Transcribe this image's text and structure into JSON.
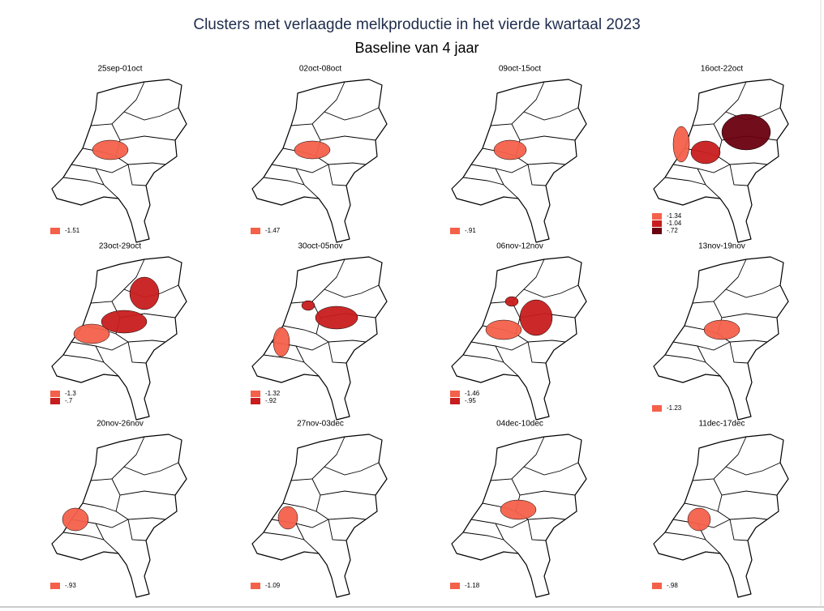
{
  "title": "Clusters met verlaagde melkproductie in het vierde kwartaal 2023",
  "subtitle": "Baseline van 4 jaar",
  "panels": [
    {
      "title": "25sep-01oct",
      "legend": [
        {
          "label": "-1.51",
          "color": "#f4604a"
        }
      ]
    },
    {
      "title": "02oct-08oct",
      "legend": [
        {
          "label": "-1.47",
          "color": "#f4604a"
        }
      ]
    },
    {
      "title": "09oct-15oct",
      "legend": [
        {
          "label": "-.91",
          "color": "#f4604a"
        }
      ]
    },
    {
      "title": "16oct-22oct",
      "legend": [
        {
          "label": "-1.34",
          "color": "#f4604a"
        },
        {
          "label": "-1.04",
          "color": "#c81d1e"
        },
        {
          "label": "-.72",
          "color": "#6a0010"
        }
      ]
    },
    {
      "title": "23oct-29oct",
      "legend": [
        {
          "label": "-1.3",
          "color": "#f4604a"
        },
        {
          "label": "-.7",
          "color": "#c81d1e"
        }
      ]
    },
    {
      "title": "30oct-05nov",
      "legend": [
        {
          "label": "-1.32",
          "color": "#f4604a"
        },
        {
          "label": "-.92",
          "color": "#c81d1e"
        }
      ]
    },
    {
      "title": "06nov-12nov",
      "legend": [
        {
          "label": "-1.46",
          "color": "#f4604a"
        },
        {
          "label": "-.95",
          "color": "#c81d1e"
        }
      ]
    },
    {
      "title": "13nov-19nov",
      "legend": [
        {
          "label": "-1.23",
          "color": "#f4604a"
        }
      ]
    },
    {
      "title": "20nov-26nov",
      "legend": [
        {
          "label": "-.93",
          "color": "#f4604a"
        }
      ]
    },
    {
      "title": "27nov-03dec",
      "legend": [
        {
          "label": "-1.09",
          "color": "#f4604a"
        }
      ]
    },
    {
      "title": "04dec-10dec",
      "legend": [
        {
          "label": "-1.18",
          "color": "#f4604a"
        }
      ]
    },
    {
      "title": "11dec-17dec",
      "legend": [
        {
          "label": "-.98",
          "color": "#f4604a"
        }
      ]
    }
  ]
}
